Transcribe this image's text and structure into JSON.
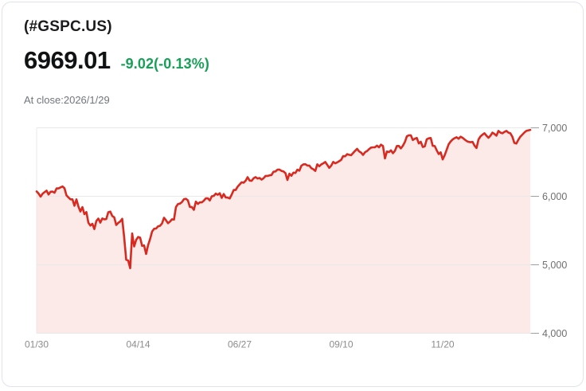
{
  "header": {
    "symbol": "(#GSPC.US)",
    "price": "6969.01",
    "change": "-9.02(-0.13%)",
    "as_of": "At close:2026/1/29"
  },
  "colors": {
    "line": "#d82a20",
    "area_fill": "#fbeae8",
    "change_text": "#18a058",
    "grid": "#e8e8e8",
    "tick_dash": "#a0a0a0",
    "y_label": "#6f6f6f",
    "x_label": "#8c8c8c",
    "card_border": "#dfe3ec"
  },
  "chart_data": {
    "type": "line",
    "title": "#GSPC.US one-year price history ending 2026/1/29",
    "xlabel": "",
    "ylabel": "",
    "ylim": [
      4000,
      7000
    ],
    "grid": true,
    "legend": false,
    "y_ticks": [
      {
        "value": 7000,
        "label": "7,000"
      },
      {
        "value": 6000,
        "label": "6,000"
      },
      {
        "value": 5000,
        "label": "5,000"
      },
      {
        "value": 4000,
        "label": "4,000"
      }
    ],
    "x_ticks": [
      {
        "index": 0,
        "label": "01/30"
      },
      {
        "index": 51,
        "label": "04/14"
      },
      {
        "index": 102,
        "label": "06/27"
      },
      {
        "index": 153,
        "label": "09/10"
      },
      {
        "index": 204,
        "label": "11/20"
      }
    ],
    "values": [
      6071,
      6040,
      5995,
      6038,
      6061,
      6083,
      6026,
      6066,
      6069,
      6052,
      6115,
      6115,
      6130,
      6144,
      6118,
      6013,
      5983,
      5955,
      5956,
      5862,
      5955,
      5850,
      5778,
      5842,
      5739,
      5770,
      5615,
      5572,
      5599,
      5521,
      5639,
      5675,
      5615,
      5676,
      5663,
      5668,
      5768,
      5777,
      5712,
      5693,
      5581,
      5612,
      5633,
      5671,
      5396,
      5074,
      5062,
      4950,
      5457,
      5268,
      5363,
      5406,
      5397,
      5276,
      5283,
      5158,
      5288,
      5376,
      5485,
      5525,
      5529,
      5561,
      5569,
      5604,
      5687,
      5650,
      5607,
      5631,
      5664,
      5660,
      5844,
      5887,
      5893,
      5916,
      5958,
      5964,
      5940,
      5845,
      5842,
      5803,
      5922,
      5889,
      5912,
      5912,
      5936,
      5970,
      5971,
      5939,
      6000,
      6006,
      6039,
      6022,
      6045,
      5977,
      6033,
      5983,
      5981,
      5968,
      6025,
      6092,
      6092,
      6141,
      6173,
      6205,
      6198,
      6227,
      6279,
      6230,
      6226,
      6263,
      6280,
      6260,
      6268,
      6244,
      6264,
      6297,
      6297,
      6306,
      6310,
      6359,
      6363,
      6389,
      6390,
      6371,
      6363,
      6339,
      6238,
      6330,
      6300,
      6345,
      6340,
      6389,
      6373,
      6446,
      6466,
      6469,
      6450,
      6449,
      6411,
      6395,
      6370,
      6467,
      6439,
      6466,
      6481,
      6501,
      6460,
      6415,
      6448,
      6502,
      6481,
      6495,
      6513,
      6532,
      6587,
      6584,
      6615,
      6606,
      6600,
      6632,
      6664,
      6693,
      6656,
      6638,
      6605,
      6644,
      6661,
      6688,
      6711,
      6715,
      6716,
      6740,
      6715,
      6754,
      6735,
      6553,
      6654,
      6645,
      6671,
      6629,
      6664,
      6735,
      6735,
      6699,
      6738,
      6792,
      6876,
      6891,
      6891,
      6822,
      6840,
      6852,
      6772,
      6796,
      6720,
      6729,
      6833,
      6847,
      6851,
      6737,
      6734,
      6672,
      6617,
      6642,
      6539,
      6600,
      6680,
      6760,
      6800,
      6830,
      6850,
      6862,
      6840,
      6870,
      6855,
      6830,
      6808,
      6795,
      6790,
      6795,
      6740,
      6705,
      6830,
      6875,
      6900,
      6920,
      6885,
      6855,
      6885,
      6930,
      6910,
      6885,
      6955,
      6930,
      6920,
      6940,
      6955,
      6930,
      6920,
      6870,
      6780,
      6770,
      6825,
      6870,
      6900,
      6930,
      6955,
      6962,
      6969.01
    ]
  }
}
